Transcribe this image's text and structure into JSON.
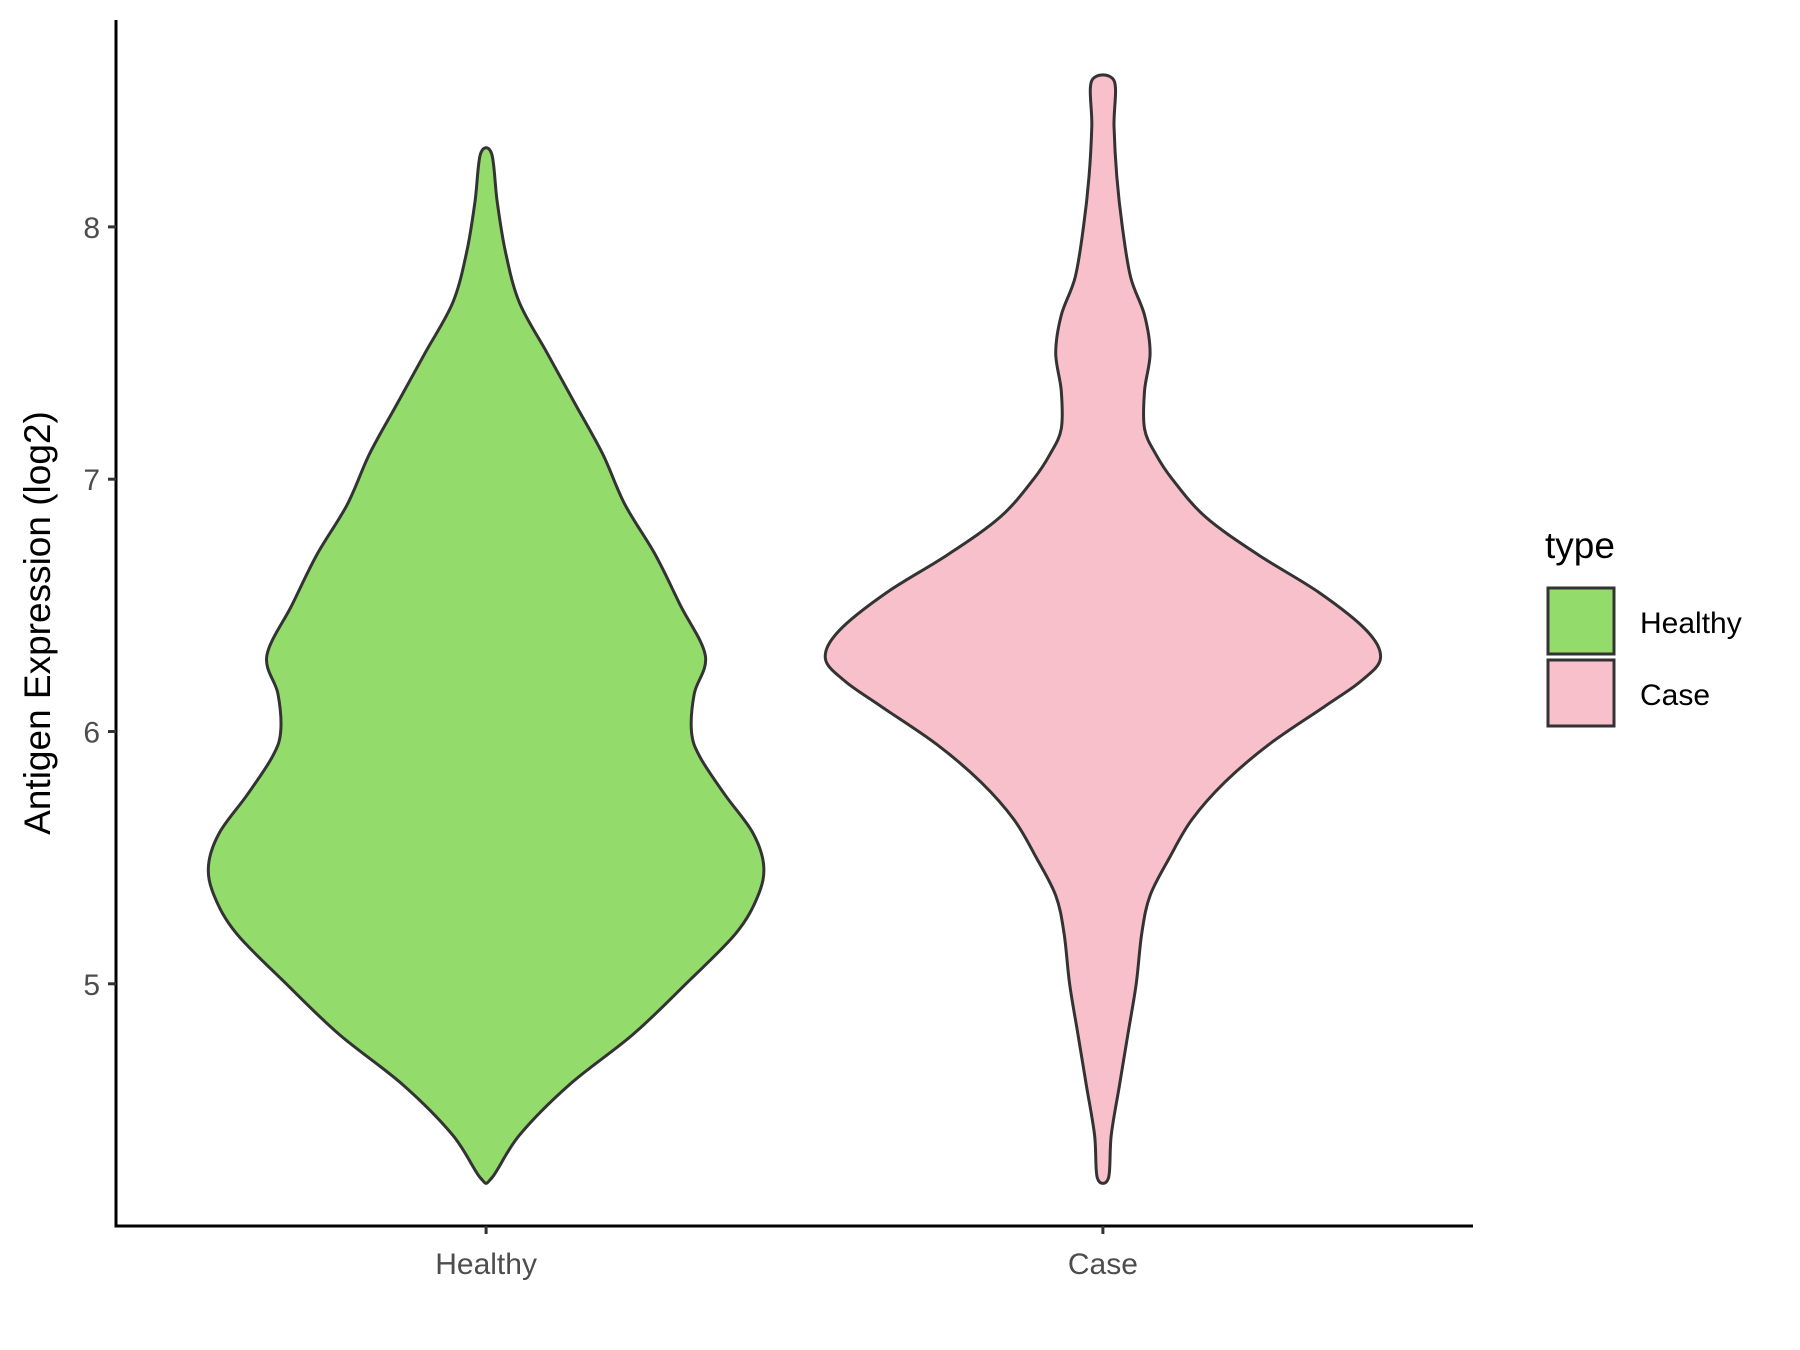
{
  "chart_data": {
    "type": "violin",
    "title": "",
    "xlabel": "",
    "ylabel": "Antigen Expression (log2)",
    "categories": [
      "Healthy",
      "Case"
    ],
    "ylim": [
      4.04,
      8.82
    ],
    "yticks": [
      5,
      6,
      7,
      8
    ],
    "grid": false,
    "legend": {
      "title": "type",
      "position": "right",
      "entries": [
        {
          "label": "Healthy",
          "color": "#93DC6B"
        },
        {
          "label": "Case",
          "color": "#F8C0CB"
        }
      ]
    },
    "outline_color": "#333333",
    "series": [
      {
        "category": "Healthy",
        "color": "#93DC6B",
        "min": 4.23,
        "max": 8.29,
        "density_profile": [
          [
            4.23,
            0.02
          ],
          [
            4.4,
            0.12
          ],
          [
            4.6,
            0.3
          ],
          [
            4.8,
            0.53
          ],
          [
            5.0,
            0.72
          ],
          [
            5.2,
            0.9
          ],
          [
            5.35,
            0.98
          ],
          [
            5.47,
            1.0
          ],
          [
            5.6,
            0.96
          ],
          [
            5.75,
            0.86
          ],
          [
            5.9,
            0.77
          ],
          [
            6.0,
            0.74
          ],
          [
            6.15,
            0.75
          ],
          [
            6.3,
            0.79
          ],
          [
            6.5,
            0.7
          ],
          [
            6.7,
            0.61
          ],
          [
            6.9,
            0.5
          ],
          [
            7.1,
            0.42
          ],
          [
            7.3,
            0.32
          ],
          [
            7.5,
            0.22
          ],
          [
            7.7,
            0.12
          ],
          [
            7.9,
            0.07
          ],
          [
            8.1,
            0.04
          ],
          [
            8.29,
            0.02
          ]
        ]
      },
      {
        "category": "Case",
        "color": "#F8C0CB",
        "min": 4.23,
        "max": 8.58,
        "density_profile": [
          [
            4.23,
            0.02
          ],
          [
            4.4,
            0.03
          ],
          [
            4.6,
            0.06
          ],
          [
            4.8,
            0.09
          ],
          [
            5.0,
            0.12
          ],
          [
            5.2,
            0.14
          ],
          [
            5.35,
            0.17
          ],
          [
            5.5,
            0.24
          ],
          [
            5.65,
            0.32
          ],
          [
            5.8,
            0.44
          ],
          [
            5.95,
            0.6
          ],
          [
            6.1,
            0.8
          ],
          [
            6.2,
            0.93
          ],
          [
            6.29,
            1.0
          ],
          [
            6.4,
            0.95
          ],
          [
            6.55,
            0.78
          ],
          [
            6.7,
            0.56
          ],
          [
            6.85,
            0.37
          ],
          [
            7.0,
            0.25
          ],
          [
            7.1,
            0.19
          ],
          [
            7.2,
            0.15
          ],
          [
            7.35,
            0.15
          ],
          [
            7.5,
            0.17
          ],
          [
            7.65,
            0.15
          ],
          [
            7.8,
            0.1
          ],
          [
            8.0,
            0.07
          ],
          [
            8.2,
            0.05
          ],
          [
            8.4,
            0.04
          ],
          [
            8.58,
            0.04
          ]
        ]
      }
    ]
  }
}
